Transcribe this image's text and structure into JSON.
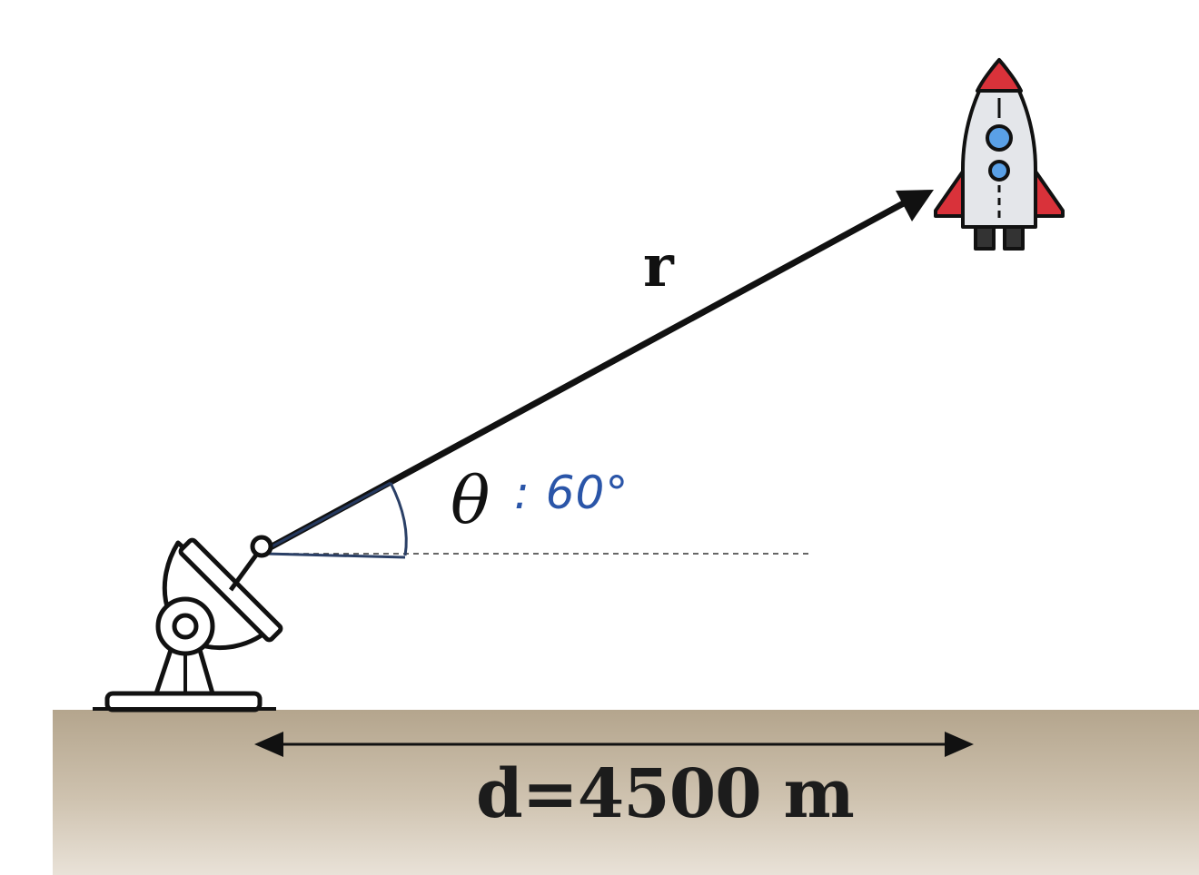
{
  "labels": {
    "r": "r",
    "theta": "θ",
    "angle": ": 60°",
    "distance": "d=4500 m"
  },
  "icons": {
    "antenna": "radar-dish-icon",
    "rocket": "rocket-icon"
  },
  "colors": {
    "ground": "#b4a58d",
    "rocket_accent": "#d9323a",
    "rocket_window": "#5aa0e6",
    "handwriting": "#2a55a8"
  }
}
